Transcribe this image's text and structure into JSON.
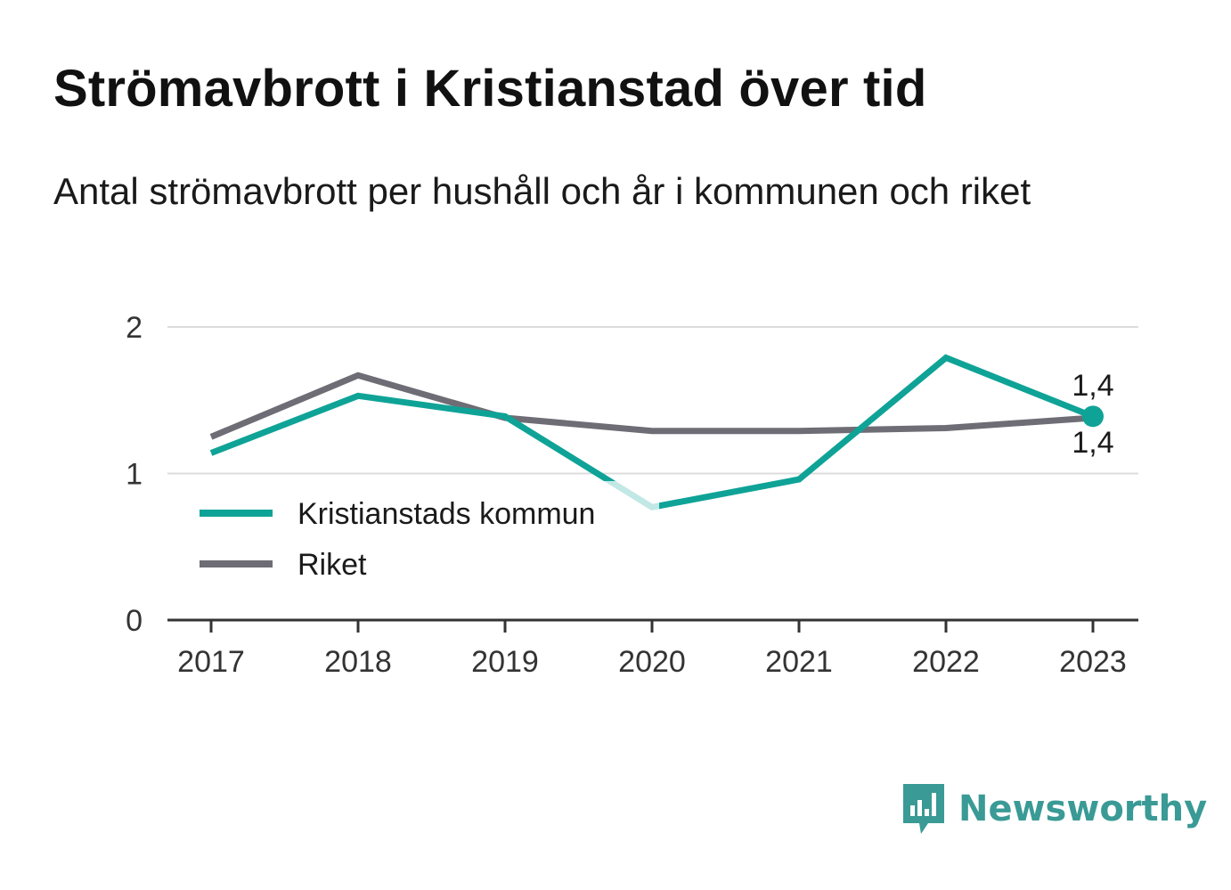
{
  "header": {
    "title": "Strömavbrott i Kristianstad över tid",
    "subtitle": "Antal strömavbrott per hushåll och år i kommunen och riket"
  },
  "brand": {
    "name": "Newsworthy",
    "icon": "newsworthy-logo-icon",
    "color": "#3a9a95"
  },
  "chart_data": {
    "type": "line",
    "title": "Strömavbrott i Kristianstad över tid",
    "subtitle": "Antal strömavbrott per hushåll och år i kommunen och riket",
    "xlabel": "",
    "ylabel": "",
    "categories": [
      "2017",
      "2018",
      "2019",
      "2020",
      "2021",
      "2022",
      "2023"
    ],
    "yticks": [
      "0",
      "1",
      "2"
    ],
    "ylim": [
      0,
      2
    ],
    "grid": true,
    "legend_position": "left",
    "series": [
      {
        "name": "Riket",
        "color": "#6e6d75",
        "values": [
          1.25,
          1.67,
          1.38,
          1.29,
          1.29,
          1.31,
          1.38
        ]
      },
      {
        "name": "Kristianstads kommun",
        "color": "#0fa397",
        "values": [
          1.14,
          1.53,
          1.39,
          0.77,
          0.96,
          1.79,
          1.39
        ]
      }
    ],
    "data_labels": {
      "kommun_last": "1,4",
      "riket_last": "1,4"
    }
  }
}
